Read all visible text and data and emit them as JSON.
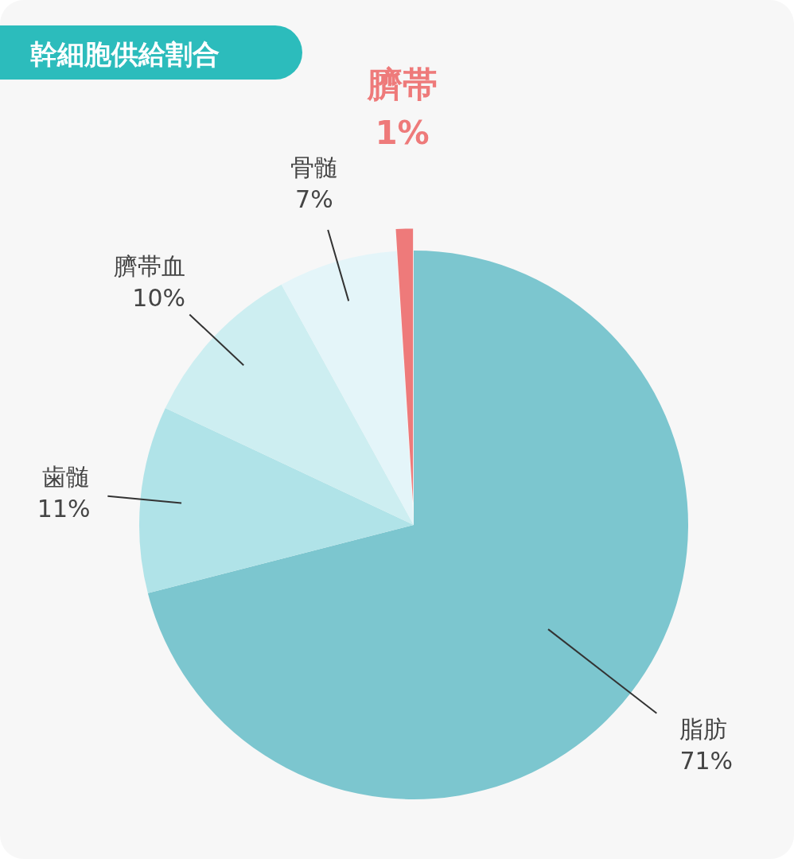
{
  "chart_data": {
    "type": "pie",
    "title": "幹細胞供給割合",
    "categories": [
      "脂肪",
      "歯髄",
      "臍帯血",
      "骨髄",
      "臍帯"
    ],
    "values": [
      71,
      11,
      10,
      7,
      1
    ],
    "colors": [
      "#7cc6cf",
      "#b0e3e8",
      "#cdeef1",
      "#e4f5f9",
      "#ee7a7a"
    ],
    "value_labels": [
      "71%",
      "11%",
      "10%",
      "7%",
      "1%"
    ]
  }
}
